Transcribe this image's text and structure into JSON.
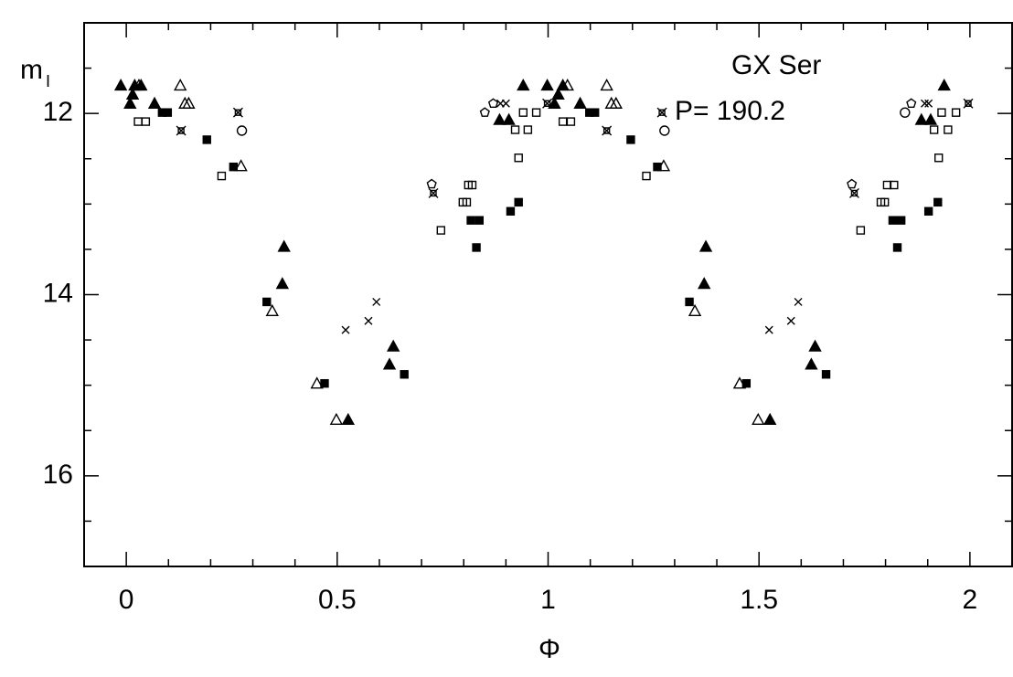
{
  "chart_data": {
    "type": "scatter",
    "annotations": [
      "GX Ser",
      "P= 190.2"
    ],
    "xlabel": "Φ",
    "ylabel": "m",
    "ylabel_subscript": "I",
    "xlim": [
      -0.1,
      2.1
    ],
    "ylim": [
      17,
      11
    ],
    "xticks": [
      0,
      0.5,
      1,
      1.5,
      2
    ],
    "yticks": [
      12,
      14,
      16
    ],
    "xminorticks": [
      -0.1,
      0.1,
      0.2,
      0.3,
      0.4,
      0.6,
      0.7,
      0.8,
      0.9,
      1.1,
      1.2,
      1.3,
      1.4,
      1.6,
      1.7,
      1.8,
      1.9,
      2.1
    ],
    "yminorticks": [
      11,
      11.5,
      12.5,
      13,
      13.5,
      14.5,
      15,
      15.5,
      16.5,
      17
    ],
    "series": [
      {
        "marker": "triangle-filled",
        "color": "#000000",
        "x": [
          -0.013,
          0.009,
          0.015,
          0.02,
          0.035,
          0.067,
          0.374,
          0.37,
          0.633,
          0.624,
          0.526,
          0.941,
          0.885,
          0.907,
          0.998,
          1.015,
          1.024,
          1.035,
          1.076,
          1.374,
          1.37,
          1.633,
          1.624,
          1.526,
          1.939,
          1.885,
          1.907
        ],
        "values": [
          11.69,
          11.89,
          11.79,
          11.69,
          11.69,
          11.89,
          13.47,
          13.88,
          14.57,
          14.77,
          15.38,
          11.69,
          12.07,
          12.07,
          11.69,
          11.89,
          11.79,
          11.69,
          11.89,
          13.47,
          13.88,
          14.57,
          14.77,
          15.38,
          11.69,
          12.07,
          12.07
        ]
      },
      {
        "marker": "triangle-open",
        "color": "#000000",
        "x": [
          0.03,
          0.128,
          0.139,
          0.148,
          0.272,
          0.346,
          0.452,
          0.498,
          1.046,
          1.139,
          1.15,
          1.161,
          1.274,
          1.348,
          1.454,
          1.498
        ],
        "values": [
          11.69,
          11.69,
          11.89,
          11.89,
          12.58,
          14.18,
          14.98,
          15.38,
          11.69,
          11.69,
          11.89,
          11.89,
          12.58,
          14.18,
          14.98,
          15.38
        ]
      },
      {
        "marker": "square-filled",
        "color": "#000000",
        "x": [
          0.085,
          0.098,
          0.191,
          0.254,
          0.333,
          0.47,
          0.659,
          0.817,
          0.837,
          0.83,
          0.911,
          0.93,
          1.098,
          1.111,
          1.196,
          1.259,
          1.335,
          1.47,
          1.659,
          1.817,
          1.837,
          1.828,
          1.902,
          1.924
        ],
        "values": [
          11.99,
          11.99,
          12.29,
          12.59,
          14.08,
          14.98,
          14.88,
          13.18,
          13.18,
          13.48,
          13.08,
          12.98,
          11.99,
          11.99,
          12.29,
          12.59,
          14.08,
          14.98,
          14.88,
          13.18,
          13.18,
          13.48,
          13.08,
          12.98
        ]
      },
      {
        "marker": "square-open",
        "color": "#000000",
        "x": [
          0.028,
          0.046,
          0.226,
          0.746,
          0.798,
          0.807,
          0.811,
          0.82,
          0.93,
          0.922,
          0.952,
          0.941,
          0.972,
          1.035,
          1.054,
          1.233,
          1.741,
          1.789,
          1.798,
          1.804,
          1.82,
          1.926,
          1.915,
          1.948,
          1.933,
          1.967
        ],
        "values": [
          12.09,
          12.09,
          12.69,
          13.29,
          12.98,
          12.98,
          12.79,
          12.79,
          12.49,
          12.18,
          12.18,
          11.99,
          11.99,
          12.09,
          12.09,
          12.69,
          13.29,
          12.98,
          12.98,
          12.79,
          12.79,
          12.49,
          12.18,
          12.18,
          11.99,
          11.99
        ]
      },
      {
        "marker": "cross",
        "color": "#000000",
        "x": [
          0.52,
          0.574,
          0.593,
          1.524,
          1.576,
          1.593,
          0.887,
          0.9,
          1.893,
          1.902
        ],
        "values": [
          14.39,
          14.29,
          14.08,
          14.39,
          14.29,
          14.08,
          11.89,
          11.89,
          11.89,
          11.89
        ]
      },
      {
        "marker": "circle-open",
        "color": "#000000",
        "x": [
          0.274,
          1.276,
          1.846
        ],
        "values": [
          12.19,
          12.19,
          11.99
        ]
      },
      {
        "marker": "pentagon-open",
        "color": "#000000",
        "x": [
          0.724,
          0.85,
          0.87,
          1.72,
          1.861
        ],
        "values": [
          12.78,
          11.99,
          11.89,
          12.78,
          11.89
        ]
      },
      {
        "marker": "star",
        "color": "#000000",
        "x": [
          0.13,
          0.265,
          0.728,
          0.998,
          1.139,
          1.27,
          1.726,
          1.996
        ],
        "values": [
          12.19,
          11.99,
          12.88,
          11.89,
          12.19,
          11.99,
          12.88,
          11.89
        ]
      }
    ]
  }
}
